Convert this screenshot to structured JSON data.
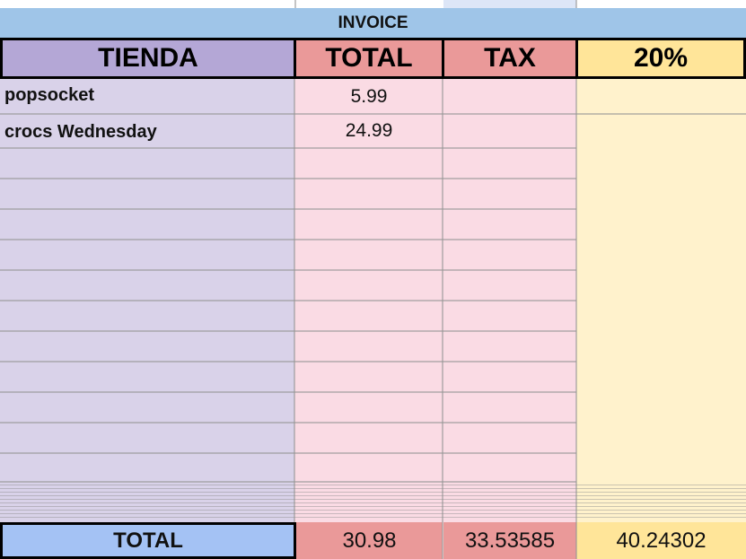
{
  "sheet": {
    "title": "INVOICE",
    "headers": {
      "store": "TIENDA",
      "total": "TOTAL",
      "tax": "TAX",
      "rate": "20%"
    },
    "rows": [
      {
        "store": "popsocket",
        "total": "5.99"
      },
      {
        "store": "crocs Wednesday",
        "total": "24.99"
      }
    ],
    "totals": {
      "label": "TOTAL",
      "total": "30.98",
      "tax": "33.53585",
      "rate": "40.24302"
    },
    "colors": {
      "store": "#d9d2e9",
      "total": "#fadbe4",
      "tax": "#fadbe4",
      "rate": "#fff2cc",
      "banner": "#9fc5e8",
      "store_header": "#b4a7d6",
      "total_header": "#ea9999",
      "rate_header": "#ffe599",
      "totals_label_bg": "#a4c2f4"
    }
  }
}
